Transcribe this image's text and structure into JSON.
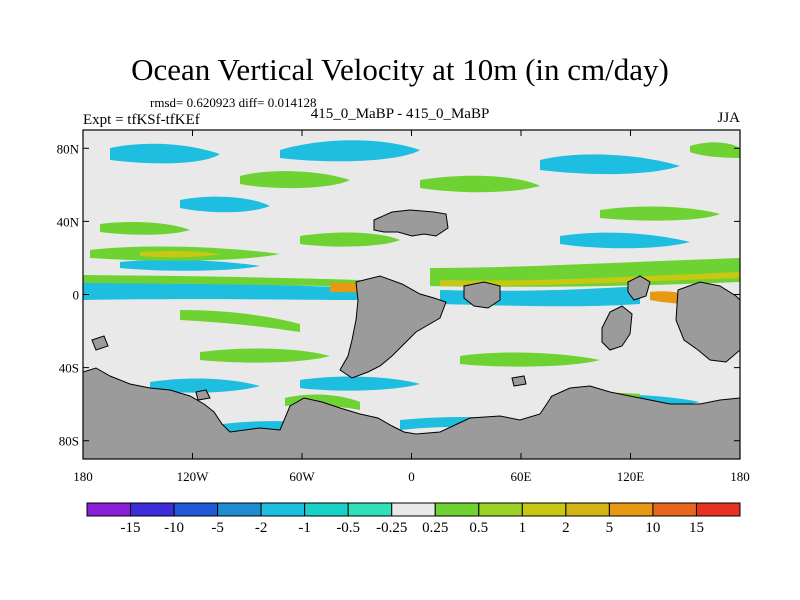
{
  "title": "Ocean Vertical Velocity at 10m (in cm/day)",
  "stats": "rmsd= 0.620923 diff= 0.014128",
  "experiment": "Expt = tfKSf-tfKEf",
  "comparison": "415_0_MaBP - 415_0_MaBP",
  "season": "JJA",
  "map": {
    "lon_range": [
      -180,
      180
    ],
    "lat_range": [
      -90,
      90
    ],
    "land_color": "#9b9b9b",
    "background_color": "#e9e9e9",
    "x_ticks": [
      {
        "value": -180,
        "label": "180"
      },
      {
        "value": -120,
        "label": "120W"
      },
      {
        "value": -60,
        "label": "60W"
      },
      {
        "value": 0,
        "label": "0"
      },
      {
        "value": 60,
        "label": "60E"
      },
      {
        "value": 120,
        "label": "120E"
      },
      {
        "value": 180,
        "label": "180"
      }
    ],
    "y_ticks": [
      {
        "value": 80,
        "label": "80N"
      },
      {
        "value": 40,
        "label": "40N"
      },
      {
        "value": 0,
        "label": "0"
      },
      {
        "value": -40,
        "label": "40S"
      },
      {
        "value": -80,
        "label": "80S"
      }
    ]
  },
  "colorbar": {
    "colors": [
      "#8b1ed8",
      "#3c2dd8",
      "#1e5ad8",
      "#1e8cd2",
      "#1ebee0",
      "#18d2c8",
      "#30e0b8",
      "#e9e9e9",
      "#6ed232",
      "#9cd228",
      "#c8c814",
      "#d2b414",
      "#e69a14",
      "#e6661e",
      "#e6321e"
    ],
    "labels": [
      "-15",
      "-10",
      "-5",
      "-2",
      "-1",
      "-0.5",
      "-0.25",
      "0.25",
      "0.5",
      "1",
      "2",
      "5",
      "10",
      "15"
    ]
  }
}
